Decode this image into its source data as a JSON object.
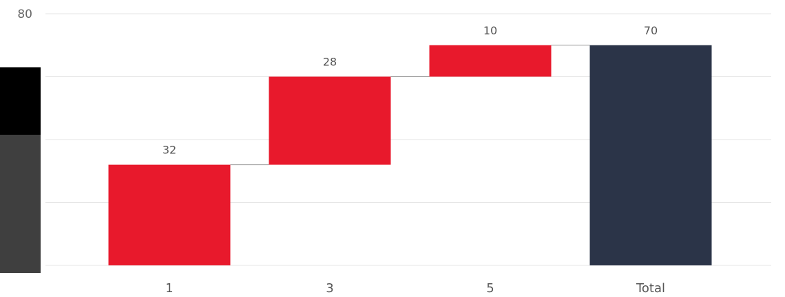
{
  "chart_data": {
    "type": "waterfall",
    "title": "",
    "xlabel": "",
    "ylabel": "",
    "ylim": [
      0,
      80
    ],
    "y_ticks": [
      0,
      20,
      40,
      60,
      80
    ],
    "grid": true,
    "legend": "none",
    "categories": [
      "1",
      "3",
      "5",
      "Total"
    ],
    "values": [
      32,
      28,
      10,
      70
    ],
    "labels": [
      "32",
      "28",
      "10",
      "70"
    ],
    "is_total": [
      false,
      false,
      false,
      true
    ],
    "colors": {
      "increase": "#e8192c",
      "total": "#2b3448",
      "connector": "#9a9a9a",
      "grid": "#e6e6e6"
    }
  }
}
